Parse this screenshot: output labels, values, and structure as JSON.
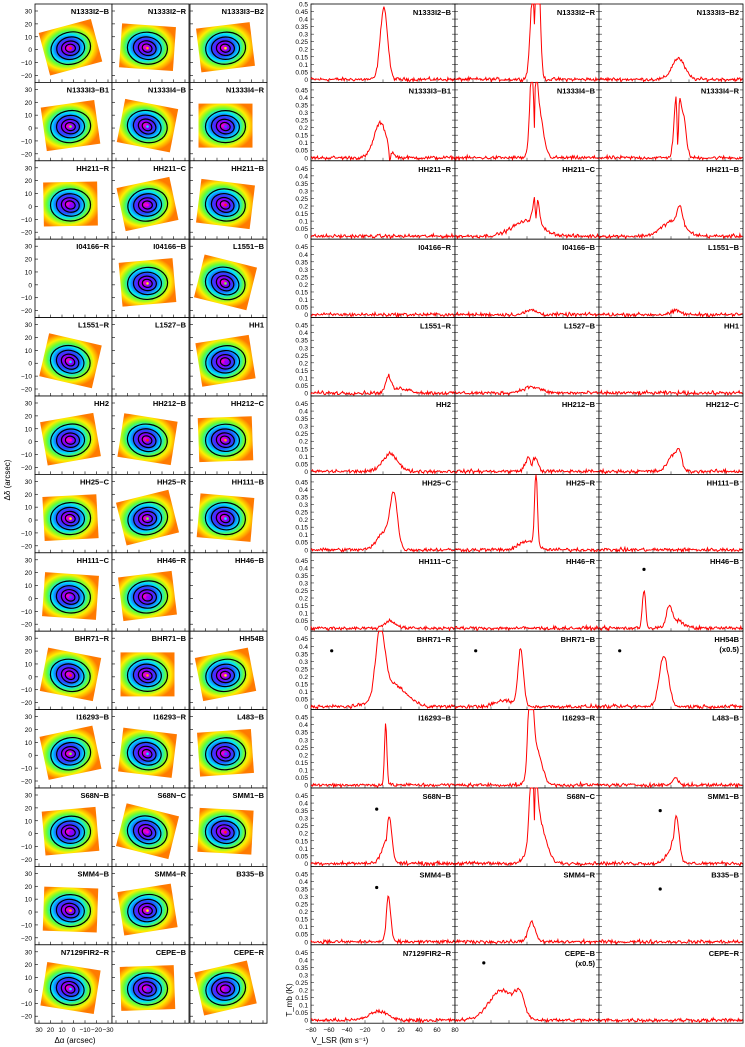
{
  "figure": {
    "map_panel": {
      "ylabel": "Δδ (arcsec)",
      "xlabel": "Δα (arcsec)",
      "xticks": [
        "30",
        "20",
        "10",
        "0",
        "−10",
        "−20",
        "−30"
      ],
      "yticks": [
        "30",
        "20",
        "10",
        "0",
        "−10",
        "−20"
      ]
    },
    "spec_panel": {
      "ylabel": "T_mb (K)",
      "xlabel": "V_LSR (km s⁻¹)",
      "xticks": [
        "−80",
        "−60",
        "−40",
        "−20",
        "0",
        "20",
        "40",
        "60",
        "80"
      ],
      "yticks": [
        "0",
        "0.05",
        "0.1",
        "0.15",
        "0.2",
        "0.25",
        "0.3",
        "0.35",
        "0.4",
        "0.45",
        "0.5"
      ]
    }
  },
  "colors": {
    "spectrum": "#ff0000",
    "axis": "#000000"
  },
  "chart_data": {
    "type": "line",
    "title": "",
    "xlabel": "V_LSR (km s⁻¹)",
    "ylabel": "T_mb (K)",
    "xlim": [
      -80,
      80
    ],
    "ylim": [
      -0.02,
      0.5
    ],
    "rows": [
      [
        {
          "label": "N1333I2−B",
          "map": true,
          "spec": {
            "comps": [
              [
                1,
                0.48,
                4
              ]
            ]
          }
        },
        {
          "label": "N1333I2−R",
          "map": true,
          "spec": {
            "comps": [
              [
                8,
                0.75,
                3.5
              ],
              [
                12,
                0.6,
                2.5
              ]
            ],
            "abs": [
              8.5,
              0.6
            ]
          }
        },
        {
          "label": "N1333I3−B2",
          "map": true,
          "spec": {
            "comps": [
              [
                8,
                0.14,
                7
              ]
            ]
          }
        }
      ],
      [
        {
          "label": "N1333I3−B1",
          "map": true,
          "spec": {
            "comps": [
              [
                -3,
                0.23,
                7
              ]
            ],
            "abs": [
              7.5,
              0.1
            ]
          }
        },
        {
          "label": "N1333I4−B",
          "map": true,
          "spec": {
            "comps": [
              [
                7,
                0.75,
                3
              ],
              [
                13,
                0.3,
                5
              ]
            ],
            "abs": [
              8,
              0.7
            ]
          }
        },
        {
          "label": "N1333I4−R",
          "map": true,
          "spec": {
            "comps": [
              [
                7,
                0.5,
                3
              ],
              [
                14,
                0.25,
                3
              ]
            ],
            "abs": [
              7.5,
              0.45
            ]
          }
        }
      ],
      [
        {
          "label": "HH211−R",
          "map": true,
          "spec": {
            "comps": []
          }
        },
        {
          "label": "HH211−C",
          "map": true,
          "spec": {
            "comps": [
              [
                0,
                0.1,
                16
              ],
              [
                10,
                0.22,
                3
              ]
            ],
            "abs": [
              10,
              0.18
            ]
          }
        },
        {
          "label": "HH211−B",
          "map": true,
          "spec": {
            "comps": [
              [
                2,
                0.1,
                12
              ],
              [
                10,
                0.12,
                3
              ]
            ]
          }
        }
      ],
      [
        {
          "label": "I04166−R",
          "map": false,
          "spec": {
            "comps": []
          }
        },
        {
          "label": "I04166−B",
          "map": true,
          "spec": {
            "comps": [
              [
                5,
                0.03,
                6
              ]
            ]
          }
        },
        {
          "label": "L1551−B",
          "map": true,
          "spec": {
            "comps": [
              [
                6,
                0.025,
                5
              ]
            ]
          }
        }
      ],
      [
        {
          "label": "L1551−R",
          "map": true,
          "spec": {
            "comps": [
              [
                6,
                0.1,
                3
              ],
              [
                20,
                0.03,
                10
              ]
            ]
          }
        },
        {
          "label": "L1527−B",
          "map": false,
          "spec": {
            "comps": [
              [
                5,
                0.04,
                10
              ]
            ]
          }
        },
        {
          "label": "HH1",
          "map": true,
          "spec": {
            "comps": []
          }
        }
      ],
      [
        {
          "label": "HH2",
          "map": true,
          "spec": {
            "comps": [
              [
                8,
                0.12,
                8
              ]
            ]
          }
        },
        {
          "label": "HH212−B",
          "map": true,
          "spec": {
            "comps": [
              [
                2,
                0.09,
                4
              ],
              [
                10,
                0.07,
                3
              ]
            ],
            "abs": [
              5,
              0.05
            ]
          }
        },
        {
          "label": "HH212−C",
          "map": true,
          "spec": {
            "comps": [
              [
                2,
                0.1,
                6
              ],
              [
                9,
                0.1,
                3
              ]
            ]
          }
        }
      ],
      [
        {
          "label": "HH25−C",
          "map": true,
          "spec": {
            "comps": [
              [
                12,
                0.33,
                4
              ],
              [
                2,
                0.12,
                8
              ]
            ]
          }
        },
        {
          "label": "HH25−R",
          "map": true,
          "spec": {
            "comps": [
              [
                10,
                0.5,
                1.6
              ],
              [
                0,
                0.06,
                8
              ]
            ]
          }
        },
        {
          "label": "HH111−B",
          "map": true,
          "spec": {
            "comps": []
          }
        }
      ],
      [
        {
          "label": "HH111−C",
          "map": true,
          "spec": {
            "comps": [
              [
                8,
                0.05,
                6
              ]
            ]
          }
        },
        {
          "label": "HH46−R",
          "map": true,
          "spec": {
            "comps": []
          }
        },
        {
          "label": "HH46−B",
          "map": false,
          "spec": {
            "comps": [
              [
                -30,
                0.26,
                1.8
              ],
              [
                -2,
                0.12,
                3
              ],
              [
                6,
                0.05,
                8
              ]
            ]
          },
          "star": [
            -30,
            0.39
          ]
        }
      ],
      [
        {
          "label": "BHR71−R",
          "map": true,
          "spec": {
            "comps": [
              [
                -3,
                0.43,
                5
              ],
              [
                10,
                0.15,
                15
              ]
            ]
          },
          "star": [
            -57,
            0.37
          ]
        },
        {
          "label": "BHR71−B",
          "map": true,
          "spec": {
            "comps": [
              [
                -7,
                0.38,
                3
              ],
              [
                -25,
                0.04,
                10
              ]
            ]
          },
          "star": [
            -57,
            0.37
          ]
        },
        {
          "label": "HH54B",
          "map": true,
          "sublabel": "(x0.5)",
          "spec": {
            "comps": [
              [
                -8,
                0.34,
                5
              ]
            ]
          },
          "star": [
            -57,
            0.37
          ]
        }
      ],
      [
        {
          "label": "I16293−B",
          "map": true,
          "spec": {
            "comps": [
              [
                3,
                0.42,
                1.3
              ]
            ]
          }
        },
        {
          "label": "I16293−R",
          "map": true,
          "spec": {
            "comps": [
              [
                4,
                0.7,
                2.5
              ],
              [
                10,
                0.25,
                6
              ]
            ]
          }
        },
        {
          "label": "L483−B",
          "map": true,
          "spec": {
            "comps": [
              [
                5,
                0.05,
                3
              ]
            ]
          }
        }
      ],
      [
        {
          "label": "S68N−B",
          "map": true,
          "spec": {
            "comps": [
              [
                7,
                0.25,
                3
              ],
              [
                2,
                0.1,
                5
              ]
            ],
            "abs": [
              4,
              0.08
            ]
          },
          "star": [
            -7,
            0.36
          ]
        },
        {
          "label": "S68N−C",
          "map": true,
          "spec": {
            "comps": [
              [
                7,
                0.75,
                3
              ],
              [
                12,
                0.3,
                8
              ]
            ],
            "abs": [
              8,
              0.7
            ]
          }
        },
        {
          "label": "SMM1−B",
          "map": true,
          "spec": {
            "comps": [
              [
                6,
                0.27,
                3
              ],
              [
                0,
                0.08,
                6
              ]
            ],
            "abs": [
              3,
              0.05
            ]
          },
          "star": [
            -12,
            0.35
          ]
        }
      ],
      [
        {
          "label": "SMM4−B",
          "map": true,
          "spec": {
            "comps": [
              [
                6,
                0.3,
                2.5
              ]
            ],
            "abs": [
              3,
              0.04
            ]
          },
          "star": [
            -7,
            0.36
          ]
        },
        {
          "label": "SMM4−R",
          "map": true,
          "spec": {
            "comps": [
              [
                5,
                0.13,
                4
              ]
            ]
          }
        },
        {
          "label": "B335−B",
          "map": false,
          "spec": {
            "comps": []
          },
          "star": [
            -12,
            0.35
          ]
        }
      ],
      [
        {
          "label": "N7129FIR2−R",
          "map": true,
          "spec": {
            "comps": [
              [
                -5,
                0.06,
                10
              ]
            ]
          }
        },
        {
          "label": "CEPE−B",
          "map": true,
          "sublabel": "(x0.5)",
          "spec": {
            "comps": [
              [
                -28,
                0.2,
                14
              ],
              [
                -8,
                0.13,
                5
              ]
            ]
          },
          "star": [
            -48,
            0.38
          ]
        },
        {
          "label": "CEPE−R",
          "map": true,
          "spec": {
            "comps": []
          }
        }
      ]
    ]
  }
}
